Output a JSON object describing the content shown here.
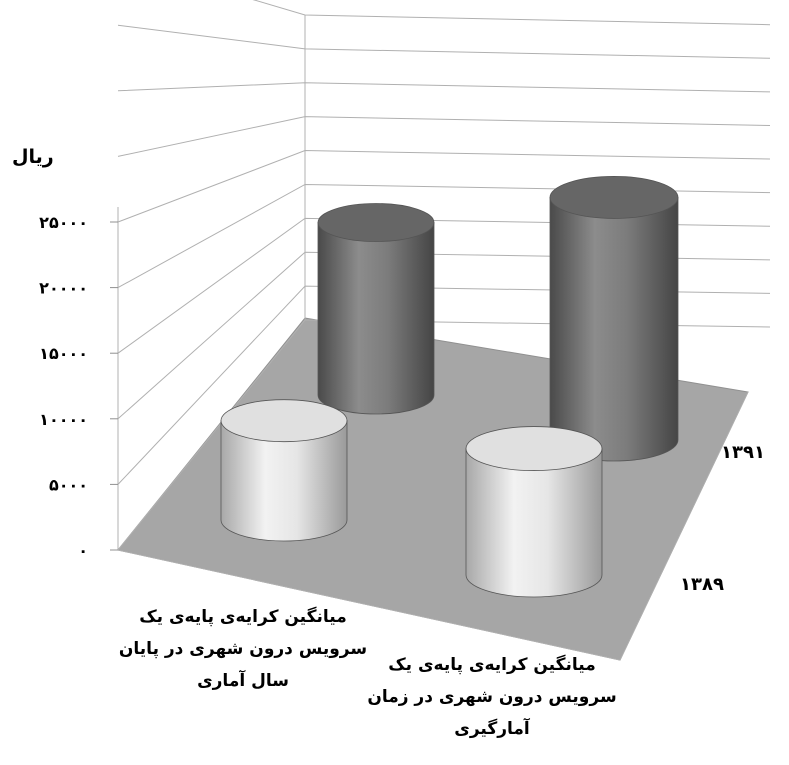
{
  "chart_data": {
    "type": "bar",
    "style": "3d-cylinder",
    "ylabel": "ریال",
    "ylim": [
      0,
      25000
    ],
    "yticks": [
      "۰",
      "۵۰۰۰",
      "۱۰۰۰۰",
      "۱۵۰۰۰",
      "۲۰۰۰۰",
      "۲۵۰۰۰"
    ],
    "categories": [
      "میانگین کرایه‌ی پایه‌ی یک سرویس درون شهری در پایان سال آماری",
      "میانگین کرایه‌ی پایه‌ی یک سرویس درون شهری در زمان آمارگیری"
    ],
    "series": [
      {
        "name": "۱۳۸۹",
        "values": [
          11000,
          14000
        ]
      },
      {
        "name": "۱۳۹۱",
        "values": [
          16000,
          22500
        ]
      }
    ],
    "colors": {
      "front": "#d9d9d9",
      "back": "#7a7a7a",
      "floor": "#a6a6a6"
    }
  }
}
